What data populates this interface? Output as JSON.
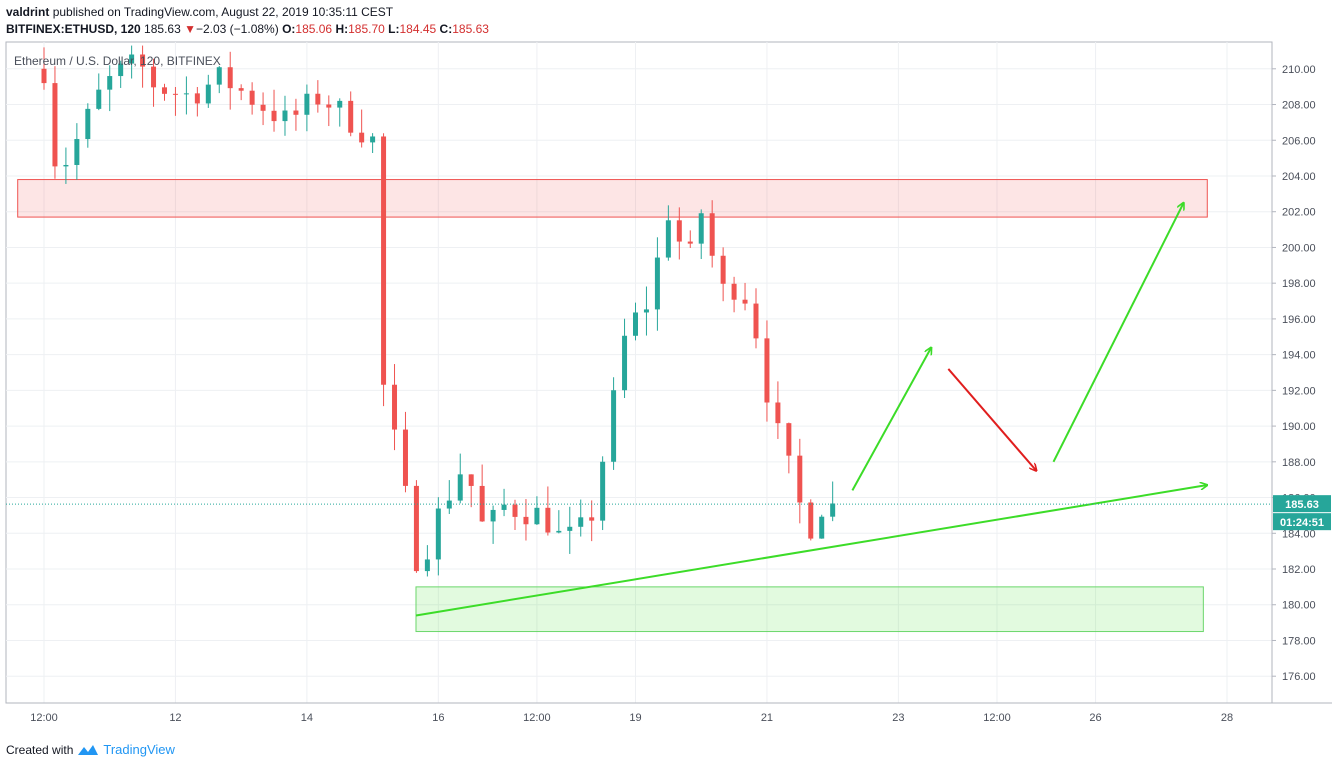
{
  "header": {
    "author": "valdrint",
    "published_text": "published on TradingView.com, August 22, 2019 10:35:11 CEST",
    "symbol": "BITFINEX:ETHUSD, 120",
    "last": "185.63",
    "change_arrow": "▼",
    "change": "−2.03 (−1.08%)",
    "o_label": "O:",
    "o_value": "185.06",
    "h_label": "H:",
    "h_value": "185.70",
    "l_label": "L:",
    "l_value": "184.45",
    "c_label": "C:",
    "c_value": "185.63"
  },
  "footer": {
    "created_with": "Created with",
    "brand": "TradingView"
  },
  "chart_data": {
    "type": "candlestick",
    "legend": "Ethereum / U.S. Dollar, 120, BITFINEX",
    "ylim": [
      174.5,
      211.5
    ],
    "y_ticks": [
      176,
      178,
      180,
      182,
      184,
      186,
      188,
      190,
      192,
      194,
      196,
      198,
      200,
      202,
      204,
      206,
      208,
      210
    ],
    "x_ticks": [
      {
        "label": "12:00",
        "t": 0
      },
      {
        "label": "12",
        "t": 1
      },
      {
        "label": "14",
        "t": 2
      },
      {
        "label": "16",
        "t": 3
      },
      {
        "label": "12:00",
        "t": 3.75
      },
      {
        "label": "19",
        "t": 4.5
      },
      {
        "label": "21",
        "t": 5.5
      },
      {
        "label": "23",
        "t": 6.5
      },
      {
        "label": "12:00",
        "t": 7.25
      },
      {
        "label": "26",
        "t": 8
      },
      {
        "label": "28",
        "t": 9
      }
    ],
    "last_price": "185.63",
    "last_price_value": 185.63,
    "countdown": "01:24:51",
    "colors": {
      "up": "#26a69a",
      "down": "#ef5350",
      "arrow_green": "#3cdc28",
      "arrow_red": "#e01e1e",
      "price_line": "#26a69a"
    },
    "anchors": [
      [
        0,
        210
      ],
      [
        0.1,
        204
      ],
      [
        0.25,
        206
      ],
      [
        0.45,
        209
      ],
      [
        0.7,
        210.5
      ],
      [
        0.85,
        209
      ],
      [
        1.1,
        208.5
      ],
      [
        1.35,
        209.5
      ],
      [
        1.65,
        208
      ],
      [
        1.85,
        207
      ],
      [
        2.1,
        208.5
      ],
      [
        2.35,
        207
      ],
      [
        2.5,
        206
      ],
      [
        2.56,
        193
      ],
      [
        2.7,
        188
      ],
      [
        2.85,
        182
      ],
      [
        3.0,
        185
      ],
      [
        3.2,
        188
      ],
      [
        3.35,
        184
      ],
      [
        3.5,
        185.5
      ],
      [
        3.8,
        185
      ],
      [
        3.95,
        183.5
      ],
      [
        4.15,
        184.5
      ],
      [
        4.3,
        190
      ],
      [
        4.42,
        195
      ],
      [
        4.5,
        196
      ],
      [
        4.6,
        197
      ],
      [
        4.75,
        202
      ],
      [
        4.9,
        199
      ],
      [
        5.0,
        202
      ],
      [
        5.15,
        197.5
      ],
      [
        5.3,
        198
      ],
      [
        5.4,
        196
      ],
      [
        5.5,
        192
      ],
      [
        5.6,
        189
      ],
      [
        5.72,
        186.5
      ],
      [
        5.8,
        184
      ],
      [
        5.95,
        186
      ],
      [
        6.05,
        185
      ]
    ],
    "zones": [
      {
        "kind": "resistance",
        "t0": -0.2,
        "t1": 8.85,
        "y0": 201.7,
        "y1": 203.8
      },
      {
        "kind": "support",
        "t0": 2.83,
        "t1": 8.82,
        "y0": 178.5,
        "y1": 181.0
      }
    ],
    "trendline": {
      "t0": 2.83,
      "y0": 179.4,
      "t1": 8.85,
      "y1": 186.7
    },
    "arrows": [
      {
        "color": "green",
        "t0": 6.15,
        "y0": 186.4,
        "t1": 6.75,
        "y1": 194.4
      },
      {
        "color": "red",
        "t0": 6.88,
        "y0": 193.2,
        "t1": 7.55,
        "y1": 187.5
      },
      {
        "color": "green",
        "t0": 7.68,
        "y0": 188.0,
        "t1": 8.67,
        "y1": 202.5
      }
    ]
  }
}
